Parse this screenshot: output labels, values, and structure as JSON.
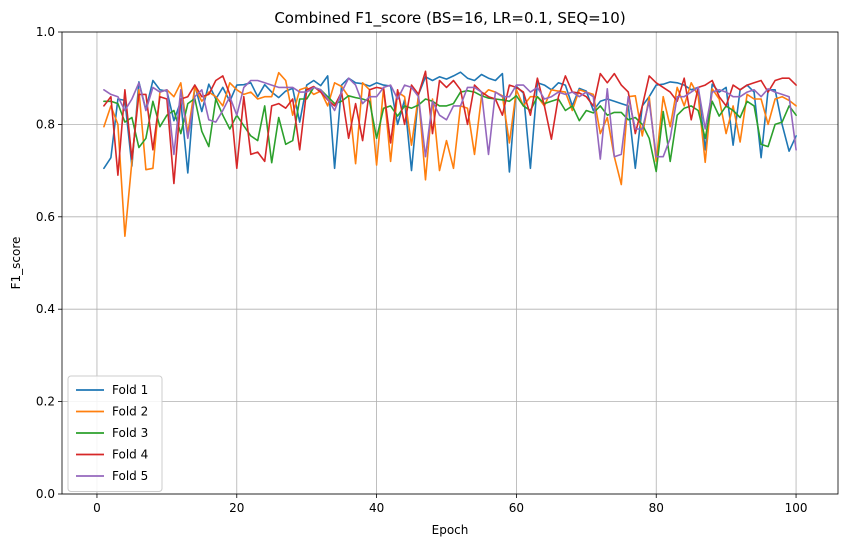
{
  "chart_data": {
    "type": "line",
    "title": "Combined F1_score (BS=16, LR=0.1, SEQ=10)",
    "xlabel": "Epoch",
    "ylabel": "F1_score",
    "xlim": [
      -5,
      106
    ],
    "ylim": [
      0.0,
      1.0
    ],
    "xticks": [
      0,
      20,
      40,
      60,
      80,
      100
    ],
    "xtick_labels": [
      "0",
      "20",
      "40",
      "60",
      "80",
      "100"
    ],
    "yticks": [
      0.0,
      0.2,
      0.4,
      0.6,
      0.8,
      1.0
    ],
    "ytick_labels": [
      "0.0",
      "0.2",
      "0.4",
      "0.6",
      "0.8",
      "1.0"
    ],
    "grid": true,
    "legend_position": "lower-left",
    "x": [
      1,
      2,
      3,
      4,
      5,
      6,
      7,
      8,
      9,
      10,
      11,
      12,
      13,
      14,
      15,
      16,
      17,
      18,
      19,
      20,
      21,
      22,
      23,
      24,
      25,
      26,
      27,
      28,
      29,
      30,
      31,
      32,
      33,
      34,
      35,
      36,
      37,
      38,
      39,
      40,
      41,
      42,
      43,
      44,
      45,
      46,
      47,
      48,
      49,
      50,
      51,
      52,
      53,
      54,
      55,
      56,
      57,
      58,
      59,
      60,
      61,
      62,
      63,
      64,
      65,
      66,
      67,
      68,
      69,
      70,
      71,
      72,
      73,
      74,
      75,
      76,
      77,
      78,
      79,
      80,
      81,
      82,
      83,
      84,
      85,
      86,
      87,
      88,
      89,
      90,
      91,
      92,
      93,
      94,
      95,
      96,
      97,
      98,
      99,
      100
    ],
    "series": [
      {
        "name": "Fold 1",
        "color": "#1f77b4",
        "values": [
          0.705,
          0.728,
          0.855,
          0.852,
          0.71,
          0.892,
          0.832,
          0.895,
          0.875,
          0.872,
          0.808,
          0.85,
          0.695,
          0.885,
          0.828,
          0.887,
          0.855,
          0.88,
          0.85,
          0.885,
          0.886,
          0.89,
          0.86,
          0.886,
          0.87,
          0.858,
          0.872,
          0.878,
          0.805,
          0.885,
          0.895,
          0.884,
          0.905,
          0.705,
          0.885,
          0.9,
          0.89,
          0.888,
          0.883,
          0.89,
          0.885,
          0.883,
          0.8,
          0.853,
          0.7,
          0.865,
          0.903,
          0.895,
          0.903,
          0.898,
          0.905,
          0.913,
          0.9,
          0.895,
          0.908,
          0.9,
          0.895,
          0.91,
          0.697,
          0.882,
          0.868,
          0.705,
          0.89,
          0.885,
          0.875,
          0.89,
          0.885,
          0.84,
          0.878,
          0.872,
          0.83,
          0.85,
          0.855,
          0.85,
          0.845,
          0.84,
          0.705,
          0.84,
          0.86,
          0.885,
          0.887,
          0.892,
          0.89,
          0.885,
          0.875,
          0.88,
          0.745,
          0.887,
          0.87,
          0.88,
          0.755,
          0.875,
          0.885,
          0.87,
          0.728,
          0.875,
          0.875,
          0.8,
          0.742,
          0.775
        ]
      },
      {
        "name": "Fold 2",
        "color": "#ff7f0e",
        "values": [
          0.795,
          0.84,
          0.8,
          0.558,
          0.72,
          0.875,
          0.702,
          0.705,
          0.87,
          0.875,
          0.86,
          0.89,
          0.78,
          0.88,
          0.85,
          0.87,
          0.86,
          0.84,
          0.89,
          0.875,
          0.865,
          0.87,
          0.855,
          0.86,
          0.86,
          0.912,
          0.895,
          0.82,
          0.875,
          0.88,
          0.865,
          0.872,
          0.84,
          0.89,
          0.882,
          0.86,
          0.715,
          0.89,
          0.875,
          0.712,
          0.88,
          0.72,
          0.87,
          0.86,
          0.755,
          0.862,
          0.68,
          0.855,
          0.7,
          0.765,
          0.705,
          0.84,
          0.835,
          0.735,
          0.86,
          0.875,
          0.87,
          0.862,
          0.76,
          0.875,
          0.84,
          0.86,
          0.86,
          0.84,
          0.875,
          0.872,
          0.87,
          0.83,
          0.875,
          0.87,
          0.865,
          0.78,
          0.815,
          0.73,
          0.67,
          0.86,
          0.862,
          0.775,
          0.86,
          0.72,
          0.86,
          0.795,
          0.88,
          0.84,
          0.89,
          0.862,
          0.718,
          0.877,
          0.855,
          0.78,
          0.84,
          0.762,
          0.865,
          0.855,
          0.855,
          0.8,
          0.855,
          0.86,
          0.852,
          0.84
        ]
      },
      {
        "name": "Fold 3",
        "color": "#2ca02c",
        "values": [
          0.85,
          0.85,
          0.845,
          0.805,
          0.815,
          0.75,
          0.77,
          0.85,
          0.795,
          0.82,
          0.83,
          0.78,
          0.845,
          0.856,
          0.785,
          0.752,
          0.855,
          0.82,
          0.79,
          0.82,
          0.797,
          0.775,
          0.765,
          0.84,
          0.717,
          0.815,
          0.757,
          0.765,
          0.855,
          0.855,
          0.88,
          0.875,
          0.86,
          0.845,
          0.85,
          0.862,
          0.858,
          0.855,
          0.85,
          0.77,
          0.835,
          0.84,
          0.818,
          0.84,
          0.835,
          0.842,
          0.855,
          0.85,
          0.84,
          0.84,
          0.845,
          0.87,
          0.873,
          0.87,
          0.862,
          0.857,
          0.855,
          0.853,
          0.85,
          0.862,
          0.84,
          0.83,
          0.86,
          0.845,
          0.85,
          0.855,
          0.83,
          0.84,
          0.808,
          0.83,
          0.825,
          0.84,
          0.82,
          0.826,
          0.826,
          0.81,
          0.815,
          0.8,
          0.77,
          0.698,
          0.828,
          0.72,
          0.82,
          0.835,
          0.84,
          0.83,
          0.77,
          0.85,
          0.818,
          0.84,
          0.83,
          0.815,
          0.85,
          0.84,
          0.757,
          0.752,
          0.8,
          0.805,
          0.84,
          0.82
        ]
      },
      {
        "name": "Fold 4",
        "color": "#d62728",
        "values": [
          0.84,
          0.86,
          0.69,
          0.875,
          0.725,
          0.865,
          0.865,
          0.745,
          0.86,
          0.855,
          0.672,
          0.855,
          0.86,
          0.885,
          0.86,
          0.865,
          0.895,
          0.905,
          0.865,
          0.705,
          0.86,
          0.735,
          0.74,
          0.72,
          0.84,
          0.845,
          0.835,
          0.855,
          0.745,
          0.875,
          0.882,
          0.87,
          0.853,
          0.84,
          0.87,
          0.77,
          0.845,
          0.765,
          0.875,
          0.88,
          0.877,
          0.76,
          0.875,
          0.8,
          0.885,
          0.865,
          0.915,
          0.78,
          0.895,
          0.88,
          0.895,
          0.875,
          0.8,
          0.885,
          0.87,
          0.86,
          0.855,
          0.82,
          0.885,
          0.88,
          0.87,
          0.82,
          0.9,
          0.84,
          0.768,
          0.86,
          0.905,
          0.87,
          0.868,
          0.86,
          0.84,
          0.91,
          0.89,
          0.91,
          0.885,
          0.87,
          0.78,
          0.84,
          0.905,
          0.89,
          0.88,
          0.87,
          0.85,
          0.9,
          0.81,
          0.88,
          0.885,
          0.895,
          0.86,
          0.84,
          0.885,
          0.875,
          0.885,
          0.89,
          0.895,
          0.87,
          0.895,
          0.9,
          0.9,
          0.885
        ]
      },
      {
        "name": "Fold 5",
        "color": "#9467bd",
        "values": [
          0.875,
          0.865,
          0.86,
          0.83,
          0.855,
          0.89,
          0.83,
          0.88,
          0.87,
          0.875,
          0.735,
          0.875,
          0.77,
          0.86,
          0.875,
          0.81,
          0.805,
          0.83,
          0.86,
          0.82,
          0.88,
          0.895,
          0.895,
          0.89,
          0.885,
          0.88,
          0.88,
          0.88,
          0.87,
          0.87,
          0.88,
          0.875,
          0.855,
          0.83,
          0.87,
          0.9,
          0.885,
          0.845,
          0.86,
          0.86,
          0.88,
          0.885,
          0.855,
          0.885,
          0.88,
          0.86,
          0.73,
          0.85,
          0.82,
          0.81,
          0.84,
          0.84,
          0.88,
          0.88,
          0.87,
          0.735,
          0.87,
          0.86,
          0.86,
          0.885,
          0.885,
          0.87,
          0.88,
          0.855,
          0.86,
          0.87,
          0.865,
          0.87,
          0.86,
          0.87,
          0.86,
          0.725,
          0.877,
          0.73,
          0.735,
          0.86,
          0.79,
          0.79,
          0.85,
          0.73,
          0.73,
          0.77,
          0.86,
          0.86,
          0.87,
          0.88,
          0.79,
          0.87,
          0.875,
          0.87,
          0.86,
          0.86,
          0.87,
          0.875,
          0.86,
          0.877,
          0.87,
          0.865,
          0.86,
          0.745
        ]
      }
    ]
  }
}
